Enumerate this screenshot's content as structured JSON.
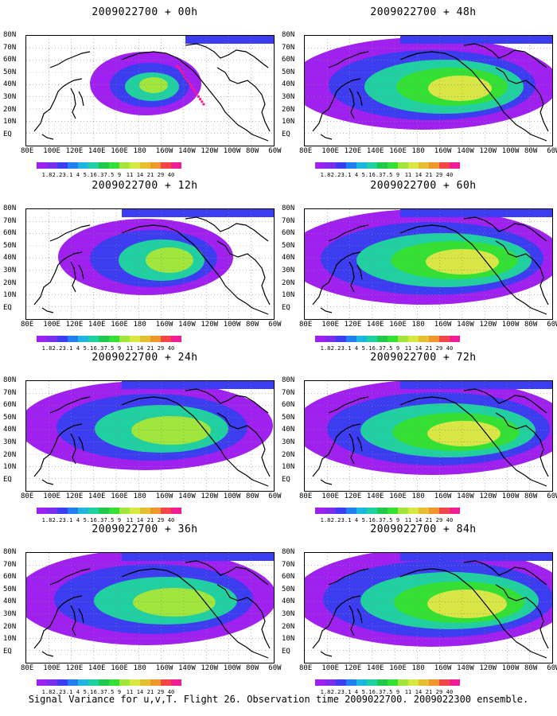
{
  "panels": [
    {
      "title": "2009022700 + 00h",
      "fill": [
        [
          160,
          90,
          40,
          32,
          0.15,
          "#8a2be2"
        ]
      ],
      "hl": [
        [
          160,
          80,
          20,
          14
        ]
      ],
      "dots": true
    },
    {
      "title": "2009022700 + 48h"
    },
    {
      "title": "2009022700 + 12h"
    },
    {
      "title": "2009022700 + 60h"
    },
    {
      "title": "2009022700 + 24h"
    },
    {
      "title": "2009022700 + 72h"
    },
    {
      "title": "2009022700 + 36h"
    },
    {
      "title": "2009022700 + 84h"
    }
  ],
  "lat_labels": [
    "80N",
    "70N",
    "60N",
    "50N",
    "40N",
    "30N",
    "20N",
    "10N",
    "EQ"
  ],
  "lon_labels": [
    "80E",
    "100E",
    "120E",
    "140E",
    "160E",
    "180",
    "160W",
    "140W",
    "120W",
    "100W",
    "80W",
    "60W"
  ],
  "colorbar": {
    "labels": [
      "1.8",
      "2.2",
      "3.1",
      "4",
      "5.1",
      "6.3",
      "7.5",
      "9",
      "11",
      "14",
      "21",
      "29",
      "40"
    ],
    "colors": [
      "#a020f0",
      "#7b2ee8",
      "#3c3cf0",
      "#2080f0",
      "#20b4e0",
      "#20d0a0",
      "#20c84c",
      "#34e034",
      "#a0e63c",
      "#d8e646",
      "#e6be32",
      "#f0962c",
      "#f04646",
      "#f01e96"
    ]
  },
  "footer": "Signal Variance for u,v,T. Flight 26. Observation time 2009022700. 2009022300 ensemble."
}
